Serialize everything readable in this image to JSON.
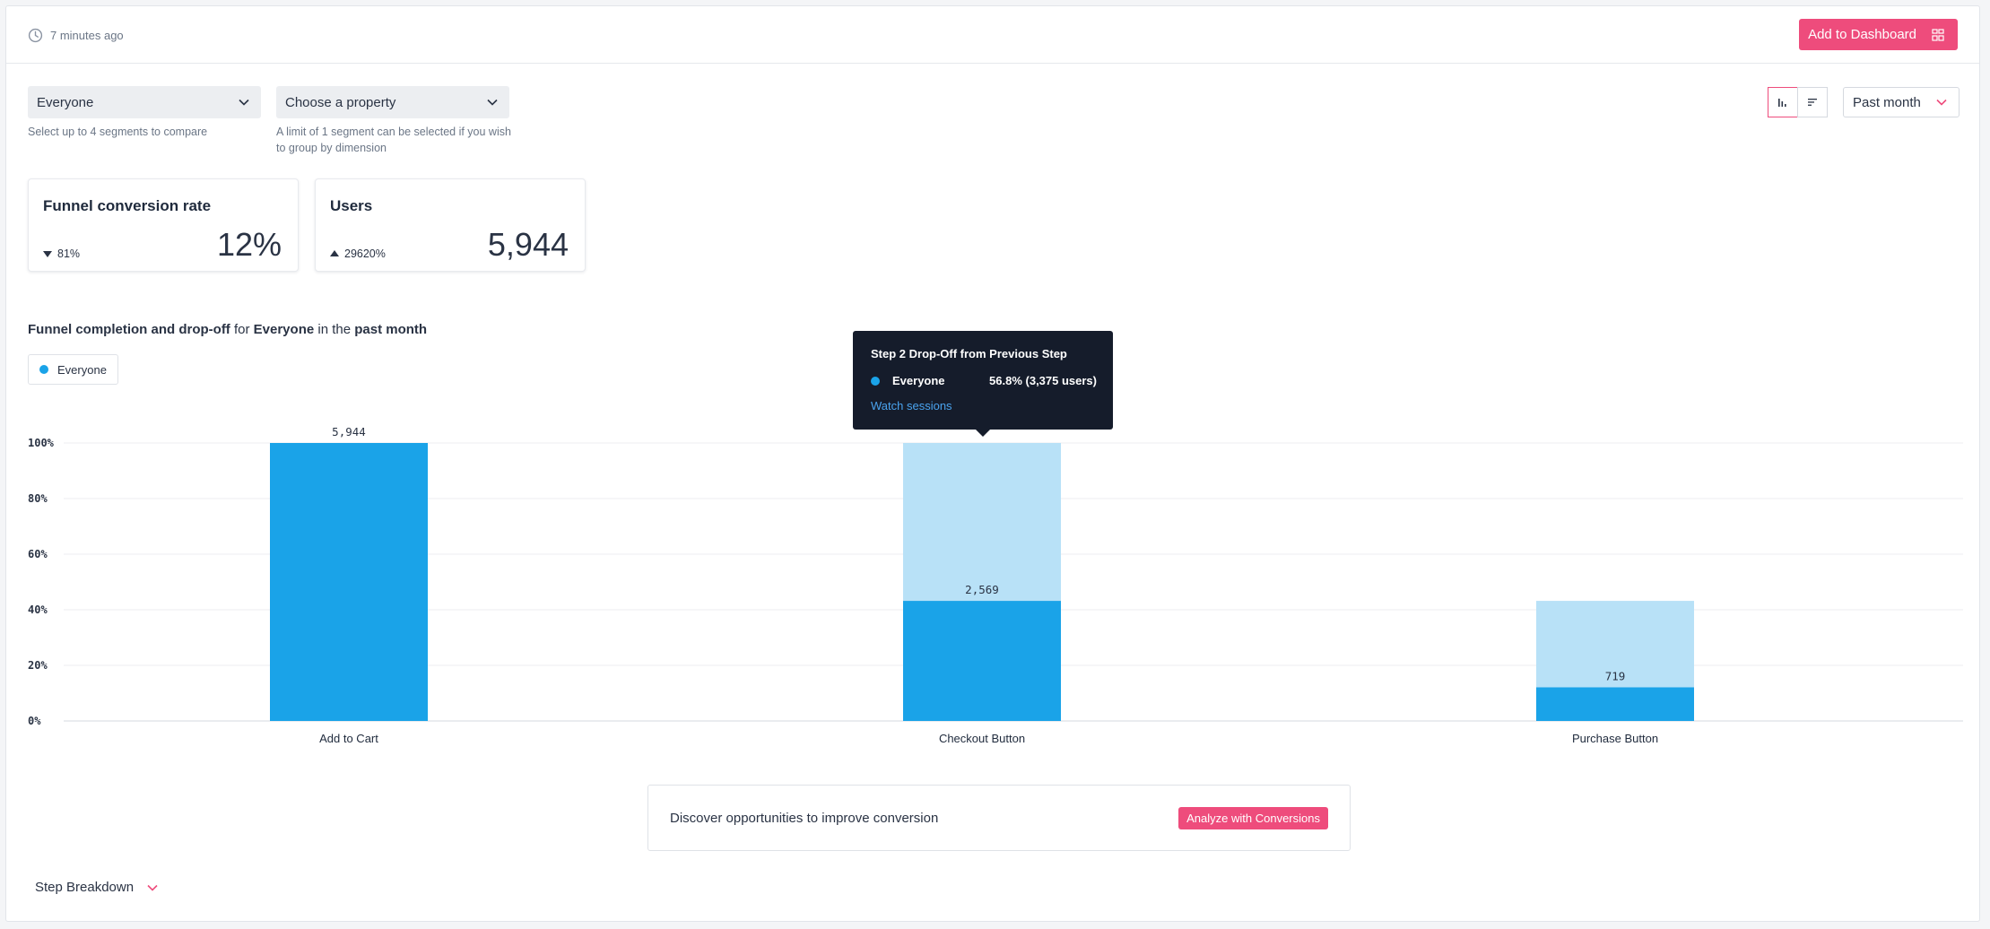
{
  "header": {
    "updated_text": "7 minutes ago",
    "add_dashboard_label": "Add to Dashboard"
  },
  "filters": {
    "segment": {
      "value": "Everyone",
      "helper": "Select up to 4 segments to compare"
    },
    "property": {
      "value": "Choose a property",
      "helper": "A limit of 1 segment can be selected if you wish to group by dimension"
    },
    "date_range": "Past month"
  },
  "metrics": [
    {
      "title": "Funnel conversion rate",
      "delta": "81%",
      "delta_direction": "down",
      "value": "12%"
    },
    {
      "title": "Users",
      "delta": "29620%",
      "delta_direction": "up",
      "value": "5,944"
    }
  ],
  "chart_section": {
    "title_parts": [
      "Funnel completion and drop-off",
      " for ",
      "Everyone",
      " in the ",
      "past month"
    ],
    "legend_label": "Everyone"
  },
  "colors": {
    "accent": "#ee4c7c",
    "bar_completed": "#1aa3e8",
    "bar_dropoff": "#b8e1f7",
    "tooltip_bg": "#151c2b",
    "link": "#4aa3ee"
  },
  "chart_data": {
    "type": "bar",
    "stacked": true,
    "categories": [
      "Add to Cart",
      "Checkout Button",
      "Purchase Button"
    ],
    "series": [
      {
        "name": "Everyone",
        "values": [
          100,
          43.2,
          12.1
        ],
        "labels": [
          "5,944",
          "2,569",
          "719"
        ]
      },
      {
        "name": "Drop-off",
        "values": [
          0,
          56.8,
          31.1
        ]
      }
    ],
    "ylim": [
      0,
      100
    ],
    "yticks": [
      "0%",
      "20%",
      "40%",
      "60%",
      "80%",
      "100%"
    ],
    "grid": true,
    "legend": "top-left"
  },
  "tooltip": {
    "title": "Step 2 Drop-Off from Previous Step",
    "series_name": "Everyone",
    "value": "56.8% (3,375 users)",
    "link": "Watch sessions"
  },
  "discover": {
    "text": "Discover opportunities to improve conversion",
    "button": "Analyze with Conversions"
  },
  "step_breakdown_label": "Step Breakdown",
  "icons": {
    "clock": "clock-icon",
    "dashboard": "grid-icon",
    "chevron": "chevron-down-icon",
    "bar_view": "bar-chart-icon",
    "list_view": "list-icon",
    "triangle_down": "triangle-down-icon",
    "triangle_up": "triangle-up-icon"
  }
}
